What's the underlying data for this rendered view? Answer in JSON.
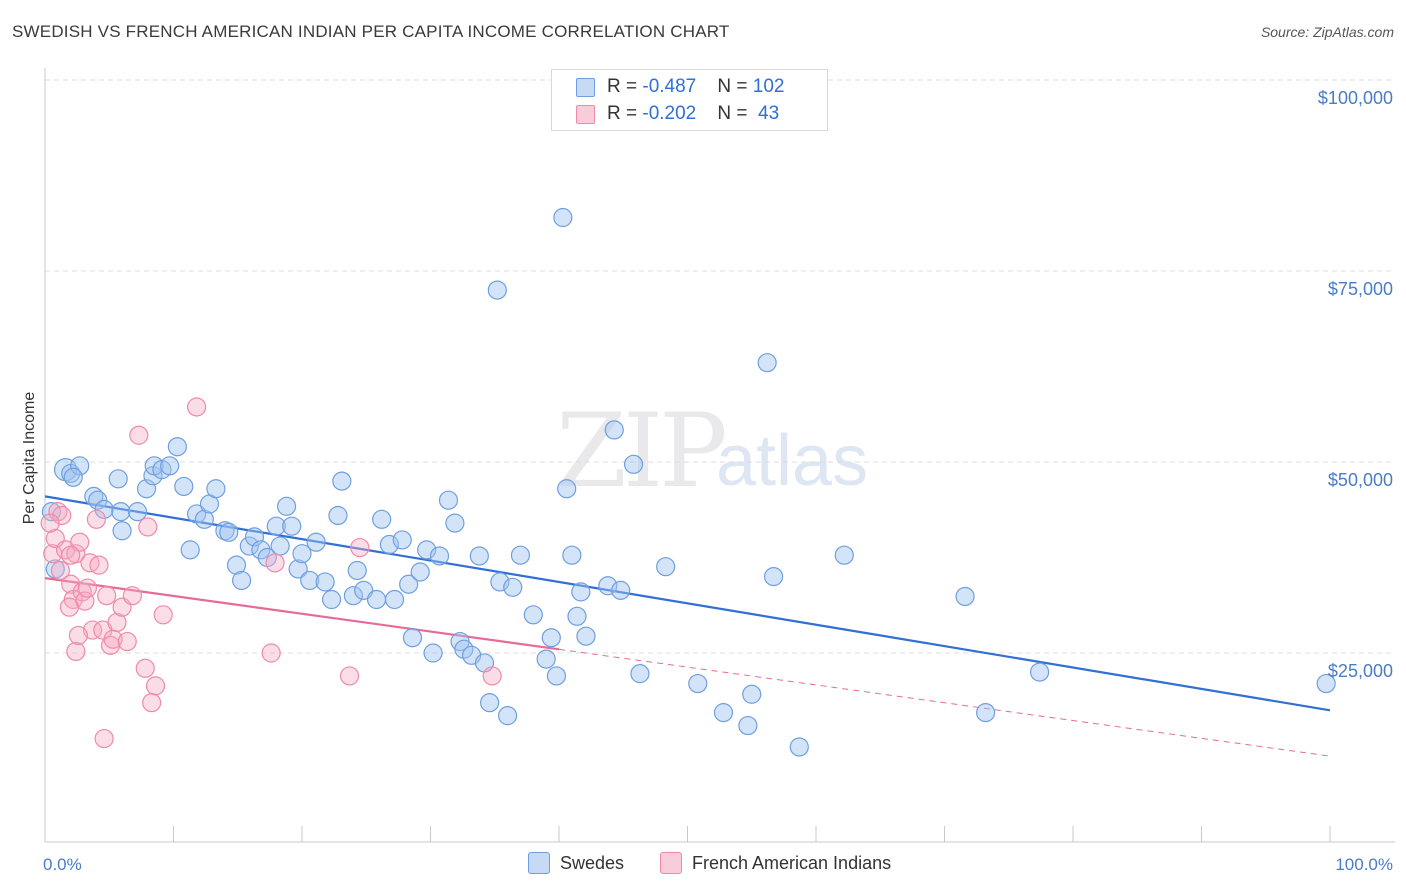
{
  "title": "SWEDISH VS FRENCH AMERICAN INDIAN PER CAPITA INCOME CORRELATION CHART",
  "source": "Source: ZipAtlas.com",
  "watermark": {
    "zip": "ZIP",
    "atlas": "atlas"
  },
  "legend": {
    "rows": [
      {
        "r_label": "R = ",
        "r_value": "-0.487",
        "n_label": "N = ",
        "n_value": "102",
        "color": "#6f9fe0"
      },
      {
        "r_label": "R = ",
        "r_value": "-0.202",
        "n_label": "N = ",
        "n_value": " 43",
        "color": "#f08aa8"
      }
    ]
  },
  "bottom_legend": [
    {
      "label": "Swedes",
      "color": "#6f9fe0"
    },
    {
      "label": "French American Indians",
      "color": "#f08aa8"
    }
  ],
  "chart_data": {
    "type": "scatter",
    "title": "SWEDISH VS FRENCH AMERICAN INDIAN PER CAPITA INCOME CORRELATION CHART",
    "xlabel": "",
    "ylabel": "Per Capita Income",
    "xlim": [
      0,
      100
    ],
    "ylim": [
      0,
      105000
    ],
    "x_tick_labels": [
      "0.0%",
      "100.0%"
    ],
    "y_ticks": [
      25000,
      50000,
      75000,
      100000
    ],
    "y_tick_labels": [
      "$25,000",
      "$50,000",
      "$75,000",
      "$100,000"
    ],
    "grid": true,
    "legend_position": "top-center",
    "series": [
      {
        "name": "Swedes",
        "color": "#6f9fe0",
        "line_color": "#2f6fd6",
        "trend": {
          "x": [
            0,
            100
          ],
          "y": [
            45500,
            17500
          ],
          "dashed_from": null
        },
        "points": [
          [
            1.6,
            49000
          ],
          [
            2.0,
            48500
          ],
          [
            2.7,
            49500
          ],
          [
            2.2,
            48000
          ],
          [
            3.8,
            45500
          ],
          [
            4.1,
            45000
          ],
          [
            4.6,
            43800
          ],
          [
            5.7,
            47800
          ],
          [
            5.9,
            43500
          ],
          [
            6.0,
            41000
          ],
          [
            7.2,
            43500
          ],
          [
            7.9,
            46500
          ],
          [
            8.4,
            48200
          ],
          [
            8.5,
            49500
          ],
          [
            9.1,
            49000
          ],
          [
            9.7,
            49500
          ],
          [
            10.3,
            52000
          ],
          [
            10.8,
            46800
          ],
          [
            11.3,
            38500
          ],
          [
            11.8,
            43200
          ],
          [
            12.4,
            42500
          ],
          [
            12.8,
            44500
          ],
          [
            13.3,
            46500
          ],
          [
            14.0,
            41000
          ],
          [
            14.3,
            40800
          ],
          [
            14.9,
            36500
          ],
          [
            15.3,
            34500
          ],
          [
            15.9,
            39000
          ],
          [
            16.3,
            40200
          ],
          [
            16.8,
            38500
          ],
          [
            17.3,
            37500
          ],
          [
            18.0,
            41600
          ],
          [
            18.3,
            39000
          ],
          [
            18.8,
            44200
          ],
          [
            19.2,
            41600
          ],
          [
            19.7,
            36000
          ],
          [
            20.0,
            38000
          ],
          [
            20.6,
            34500
          ],
          [
            21.1,
            39500
          ],
          [
            21.8,
            34300
          ],
          [
            22.3,
            32000
          ],
          [
            22.8,
            43000
          ],
          [
            23.1,
            47500
          ],
          [
            24.0,
            32500
          ],
          [
            24.3,
            35800
          ],
          [
            24.8,
            33200
          ],
          [
            25.8,
            32000
          ],
          [
            26.2,
            42500
          ],
          [
            26.8,
            39200
          ],
          [
            27.2,
            32000
          ],
          [
            27.8,
            39800
          ],
          [
            28.3,
            34000
          ],
          [
            28.6,
            27000
          ],
          [
            29.2,
            35600
          ],
          [
            29.7,
            38500
          ],
          [
            30.2,
            25000
          ],
          [
            30.7,
            37700
          ],
          [
            31.4,
            45000
          ],
          [
            31.9,
            42000
          ],
          [
            32.3,
            26500
          ],
          [
            32.6,
            25500
          ],
          [
            33.2,
            24700
          ],
          [
            33.8,
            37700
          ],
          [
            34.2,
            23700
          ],
          [
            34.6,
            18500
          ],
          [
            35.4,
            34300
          ],
          [
            36.0,
            16800
          ],
          [
            36.4,
            33600
          ],
          [
            37.0,
            37800
          ],
          [
            38.0,
            30000
          ],
          [
            39.0,
            24200
          ],
          [
            39.4,
            27000
          ],
          [
            39.8,
            22000
          ],
          [
            40.6,
            46500
          ],
          [
            41.0,
            37800
          ],
          [
            41.4,
            29800
          ],
          [
            41.7,
            33000
          ],
          [
            42.1,
            27200
          ],
          [
            43.8,
            33800
          ],
          [
            44.3,
            54200
          ],
          [
            44.8,
            33200
          ],
          [
            45.8,
            49700
          ],
          [
            46.3,
            22300
          ],
          [
            48.3,
            36300
          ],
          [
            50.8,
            21000
          ],
          [
            52.8,
            17200
          ],
          [
            54.7,
            15500
          ],
          [
            55.0,
            19600
          ],
          [
            56.7,
            35000
          ],
          [
            58.7,
            12700
          ],
          [
            62.2,
            37800
          ],
          [
            71.6,
            32400
          ],
          [
            73.2,
            17200
          ],
          [
            77.4,
            22500
          ],
          [
            99.7,
            21000
          ],
          [
            40.3,
            82000
          ],
          [
            35.2,
            72500
          ],
          [
            56.2,
            63000
          ],
          [
            0.5,
            43500
          ],
          [
            0.8,
            36000
          ]
        ]
      },
      {
        "name": "French American Indians",
        "color": "#f08aa8",
        "line_color": "#e76b98",
        "trend": {
          "x": [
            0,
            100
          ],
          "y": [
            34800,
            11500
          ],
          "solid_until": 40
        },
        "points": [
          [
            0.6,
            38000
          ],
          [
            0.8,
            40000
          ],
          [
            1.0,
            43500
          ],
          [
            1.3,
            43000
          ],
          [
            1.6,
            38500
          ],
          [
            2.0,
            34000
          ],
          [
            2.2,
            32000
          ],
          [
            2.4,
            38000
          ],
          [
            2.7,
            39500
          ],
          [
            2.9,
            33000
          ],
          [
            3.1,
            31800
          ],
          [
            3.3,
            33500
          ],
          [
            3.5,
            36800
          ],
          [
            3.7,
            28000
          ],
          [
            4.0,
            42500
          ],
          [
            4.2,
            36500
          ],
          [
            4.5,
            28000
          ],
          [
            4.8,
            32500
          ],
          [
            5.1,
            26000
          ],
          [
            5.3,
            26800
          ],
          [
            5.6,
            29000
          ],
          [
            6.0,
            31000
          ],
          [
            6.4,
            26500
          ],
          [
            6.8,
            32500
          ],
          [
            7.3,
            53500
          ],
          [
            7.8,
            23000
          ],
          [
            8.0,
            41500
          ],
          [
            8.3,
            18500
          ],
          [
            8.6,
            20700
          ],
          [
            9.2,
            30000
          ],
          [
            11.8,
            57200
          ],
          [
            17.6,
            25000
          ],
          [
            17.9,
            36800
          ],
          [
            23.7,
            22000
          ],
          [
            24.5,
            38800
          ],
          [
            34.8,
            22000
          ],
          [
            2.4,
            25200
          ],
          [
            0.4,
            42000
          ],
          [
            1.9,
            31000
          ],
          [
            2.6,
            27300
          ],
          [
            4.6,
            13800
          ],
          [
            1.2,
            35800
          ],
          [
            2.0,
            37800
          ]
        ]
      }
    ]
  }
}
